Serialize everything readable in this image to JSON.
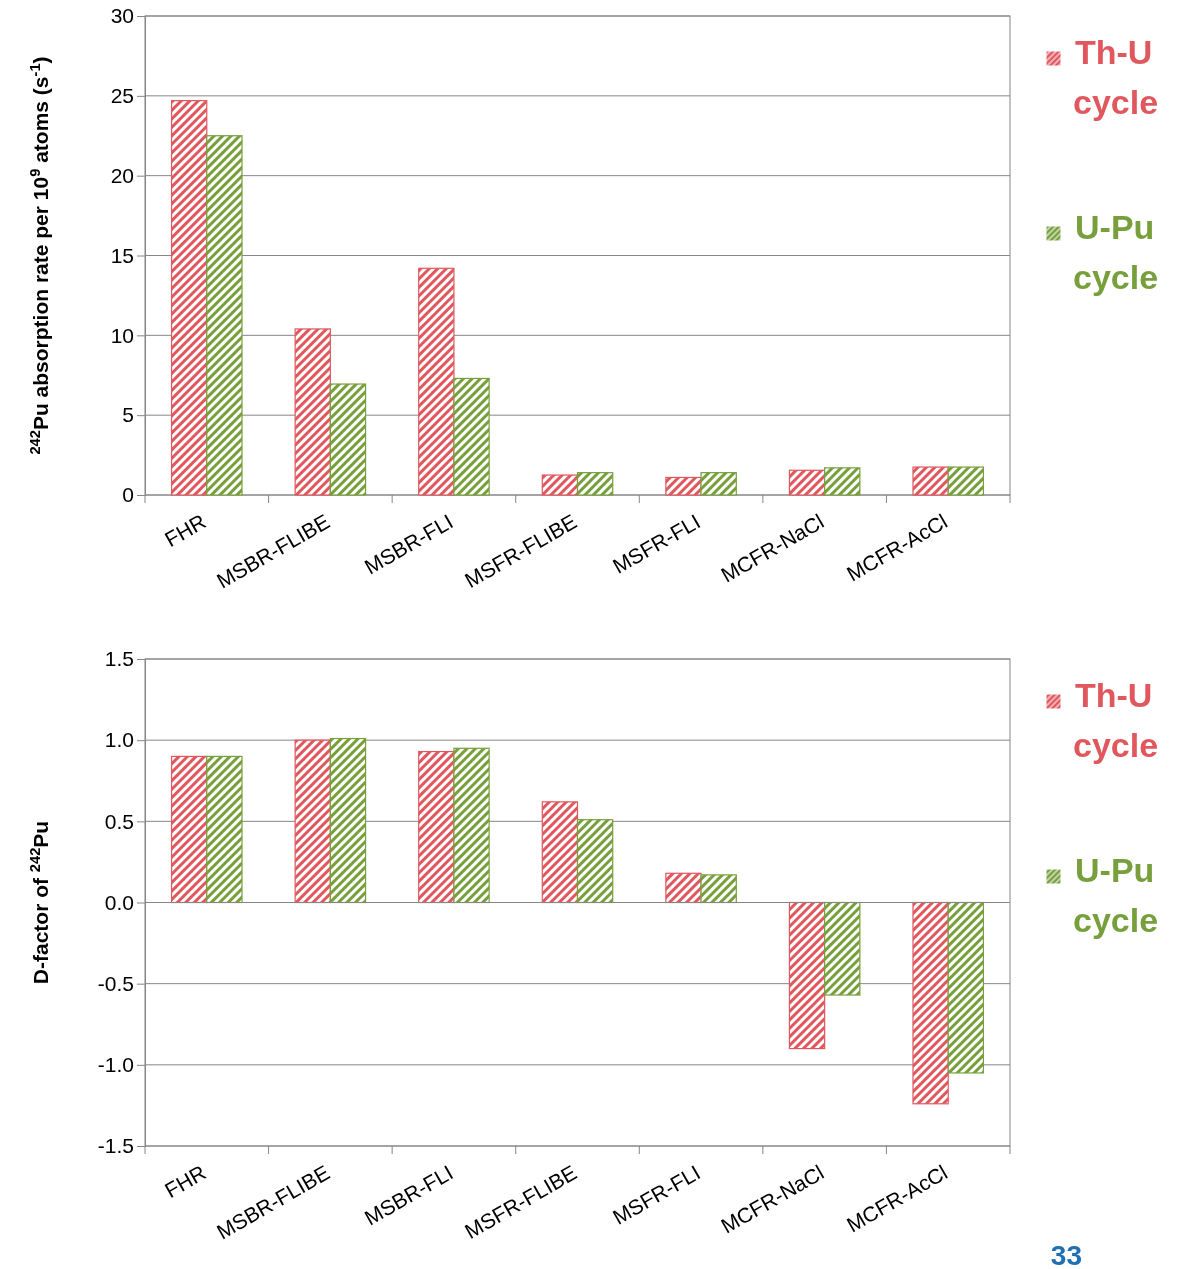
{
  "chart_data": [
    {
      "type": "bar",
      "ylabel": "$^{242}$Pu absorption rate per 10$^{9}$ atoms (s$^{-1}$)",
      "categories": [
        "FHR",
        "MSBR-FLIBE",
        "MSBR-FLI",
        "MSFR-FLIBE",
        "MSFR-FLI",
        "MCFR-NaCl",
        "MCFR-AcCl"
      ],
      "series": [
        {
          "name": "Th-U cycle",
          "color": "#e0585e",
          "values": [
            24.7,
            10.4,
            14.2,
            1.25,
            1.1,
            1.55,
            1.75
          ]
        },
        {
          "name": "U-Pu cycle",
          "color": "#77a03c",
          "values": [
            22.5,
            6.95,
            7.3,
            1.4,
            1.4,
            1.7,
            1.75
          ]
        }
      ],
      "ylim": [
        0,
        30
      ],
      "yticks": [
        0,
        5,
        10,
        15,
        20,
        25,
        30
      ],
      "grid": "y",
      "legend": "right"
    },
    {
      "type": "bar",
      "ylabel": "D-factor of $^{242}$Pu",
      "categories": [
        "FHR",
        "MSBR-FLIBE",
        "MSBR-FLI",
        "MSFR-FLIBE",
        "MSFR-FLI",
        "MCFR-NaCl",
        "MCFR-AcCl"
      ],
      "series": [
        {
          "name": "Th-U cycle",
          "color": "#e0585e",
          "values": [
            0.9,
            1.0,
            0.93,
            0.62,
            0.18,
            -0.9,
            -1.24
          ]
        },
        {
          "name": "U-Pu cycle",
          "color": "#77a03c",
          "values": [
            0.9,
            1.01,
            0.95,
            0.51,
            0.17,
            -0.57,
            -1.05
          ]
        }
      ],
      "ylim": [
        -1.5,
        1.5
      ],
      "yticks": [
        {
          "value": -1.5,
          "label": "-1.5"
        },
        {
          "value": -1,
          "label": "-1.0"
        },
        {
          "value": -0.5,
          "label": "-0.5"
        },
        {
          "value": 0,
          "label": "0.0"
        },
        {
          "value": 0.5,
          "label": "0.5"
        },
        {
          "value": 1,
          "label": "1.0"
        },
        {
          "value": 1.5,
          "label": "1.5"
        }
      ],
      "grid": "y",
      "legend": "right",
      "annotations": [
        "33"
      ]
    }
  ]
}
